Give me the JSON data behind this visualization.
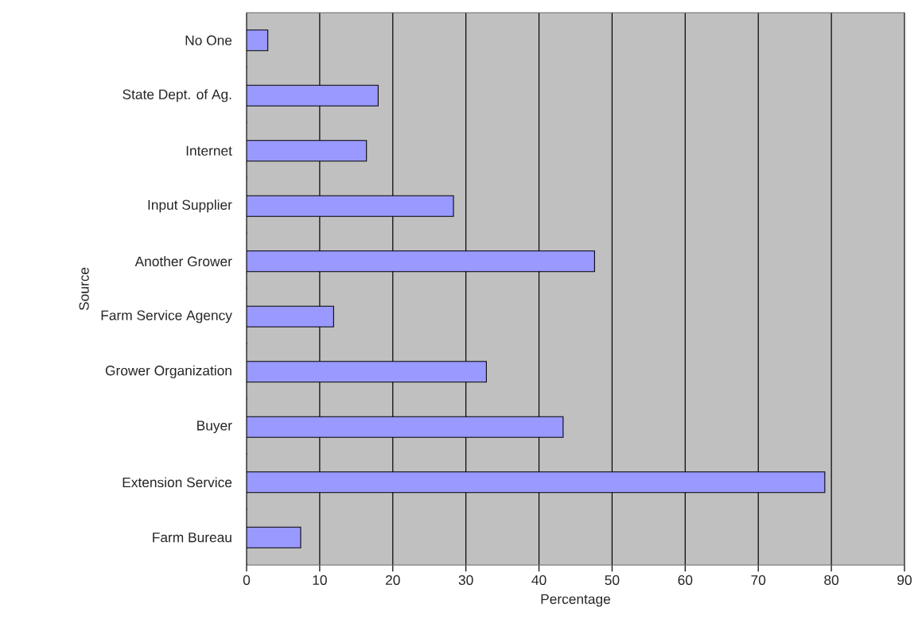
{
  "chart_data": {
    "type": "bar",
    "orientation": "horizontal",
    "categories": [
      "No One",
      "State Dept. of Ag.",
      "Internet",
      "Input Supplier",
      "Another Grower",
      "Farm Service Agency",
      "Grower Organization",
      "Buyer",
      "Extension Service",
      "Farm Bureau"
    ],
    "values": [
      2.9,
      18.0,
      16.4,
      28.3,
      47.6,
      11.9,
      32.8,
      43.3,
      79.1,
      7.4
    ],
    "color": "#9999ff",
    "xlabel": "Percentage",
    "ylabel": "Source",
    "xlim": [
      0,
      90
    ],
    "xticks": [
      0,
      10,
      20,
      30,
      40,
      50,
      60,
      70,
      80,
      90
    ],
    "grid": "x"
  }
}
